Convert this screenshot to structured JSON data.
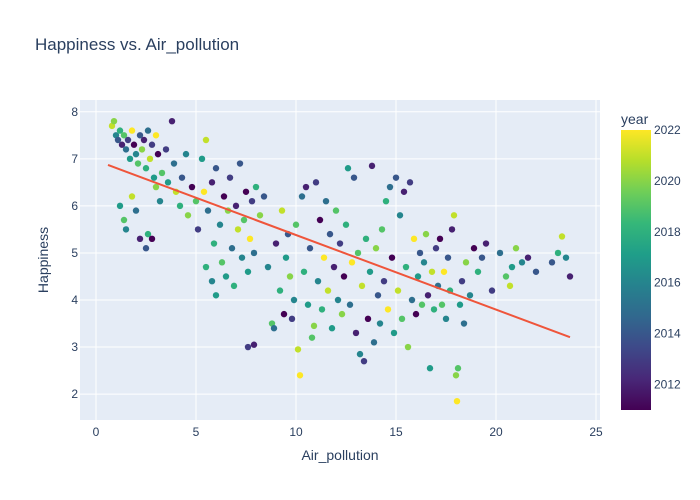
{
  "chart_data": {
    "type": "scatter",
    "title": "Happiness vs. Air_pollution",
    "xlabel": "Air_pollution",
    "ylabel": "Happiness",
    "xlim": [
      -0.8,
      25.2
    ],
    "ylim": [
      1.45,
      8.25
    ],
    "xticks": [
      0,
      5,
      10,
      15,
      20,
      25
    ],
    "yticks": [
      2,
      3,
      4,
      5,
      6,
      7,
      8
    ],
    "grid": true,
    "colorbar": {
      "title": "year",
      "range": [
        2011,
        2022
      ],
      "ticks": [
        2012,
        2014,
        2016,
        2018,
        2020,
        2022
      ],
      "colors": [
        "#440154",
        "#482878",
        "#3e4989",
        "#31688e",
        "#26828e",
        "#1f9e89",
        "#35b779",
        "#6ece58",
        "#b5de2b",
        "#fde725"
      ]
    },
    "trendline": {
      "color": "#ef553b",
      "x": [
        0.6,
        23.7
      ],
      "y": [
        6.87,
        3.21
      ]
    },
    "points": [
      [
        0.8,
        7.7,
        2021
      ],
      [
        0.9,
        7.8,
        2020
      ],
      [
        1.0,
        7.5,
        2016
      ],
      [
        1.1,
        7.4,
        2014
      ],
      [
        1.2,
        7.6,
        2018
      ],
      [
        1.3,
        7.3,
        2012
      ],
      [
        1.4,
        7.5,
        2019
      ],
      [
        1.5,
        7.2,
        2015
      ],
      [
        1.6,
        7.4,
        2013
      ],
      [
        1.7,
        7.0,
        2017
      ],
      [
        1.8,
        7.6,
        2022
      ],
      [
        1.9,
        7.3,
        2011
      ],
      [
        2.0,
        7.1,
        2016
      ],
      [
        2.1,
        6.9,
        2019
      ],
      [
        2.2,
        7.5,
        2014
      ],
      [
        2.3,
        7.2,
        2020
      ],
      [
        2.4,
        7.4,
        2012
      ],
      [
        2.5,
        6.8,
        2018
      ],
      [
        2.6,
        7.6,
        2015
      ],
      [
        2.7,
        7.0,
        2021
      ],
      [
        2.8,
        7.3,
        2013
      ],
      [
        2.9,
        6.6,
        2017
      ],
      [
        3.0,
        7.5,
        2022
      ],
      [
        3.1,
        7.1,
        2011
      ],
      [
        1.2,
        6.0,
        2017
      ],
      [
        1.4,
        5.7,
        2019
      ],
      [
        1.5,
        5.5,
        2016
      ],
      [
        1.8,
        6.2,
        2021
      ],
      [
        2.0,
        5.9,
        2015
      ],
      [
        2.2,
        5.3,
        2012
      ],
      [
        2.5,
        5.1,
        2014
      ],
      [
        2.6,
        5.4,
        2018
      ],
      [
        2.8,
        5.3,
        2011
      ],
      [
        3.0,
        6.4,
        2020
      ],
      [
        3.2,
        6.1,
        2016
      ],
      [
        3.3,
        6.7,
        2019
      ],
      [
        3.5,
        7.2,
        2013
      ],
      [
        3.6,
        6.5,
        2017
      ],
      [
        3.8,
        7.8,
        2012
      ],
      [
        3.9,
        6.9,
        2015
      ],
      [
        4.0,
        6.3,
        2021
      ],
      [
        4.2,
        6.0,
        2018
      ],
      [
        4.3,
        6.6,
        2014
      ],
      [
        4.5,
        7.1,
        2016
      ],
      [
        4.6,
        5.8,
        2020
      ],
      [
        4.8,
        6.4,
        2011
      ],
      [
        5.0,
        6.1,
        2019
      ],
      [
        5.1,
        5.5,
        2013
      ],
      [
        5.3,
        7.0,
        2017
      ],
      [
        5.4,
        6.3,
        2022
      ],
      [
        5.5,
        7.4,
        2021
      ],
      [
        5.6,
        5.9,
        2015
      ],
      [
        5.8,
        6.5,
        2012
      ],
      [
        5.9,
        5.2,
        2018
      ],
      [
        6.0,
        6.8,
        2014
      ],
      [
        6.2,
        5.6,
        2016
      ],
      [
        6.3,
        4.8,
        2019
      ],
      [
        6.4,
        6.2,
        2011
      ],
      [
        6.5,
        4.5,
        2017
      ],
      [
        6.6,
        5.9,
        2020
      ],
      [
        6.7,
        6.6,
        2013
      ],
      [
        6.8,
        5.1,
        2015
      ],
      [
        6.9,
        4.3,
        2018
      ],
      [
        7.0,
        6.0,
        2012
      ],
      [
        7.1,
        5.5,
        2021
      ],
      [
        7.2,
        6.9,
        2014
      ],
      [
        7.3,
        4.9,
        2016
      ],
      [
        7.4,
        5.7,
        2019
      ],
      [
        7.5,
        6.3,
        2011
      ],
      [
        7.6,
        4.6,
        2017
      ],
      [
        7.7,
        5.3,
        2022
      ],
      [
        7.8,
        6.1,
        2013
      ],
      [
        7.9,
        5.0,
        2015
      ],
      [
        8.0,
        6.4,
        2018
      ],
      [
        6.0,
        4.1,
        2017
      ],
      [
        5.8,
        4.4,
        2016
      ],
      [
        5.5,
        4.7,
        2018
      ],
      [
        7.6,
        3.0,
        2013
      ],
      [
        7.9,
        3.05,
        2012
      ],
      [
        8.2,
        5.8,
        2020
      ],
      [
        8.4,
        6.2,
        2014
      ],
      [
        8.6,
        4.7,
        2016
      ],
      [
        8.8,
        3.5,
        2019
      ],
      [
        8.9,
        3.4,
        2015
      ],
      [
        9.0,
        5.2,
        2012
      ],
      [
        9.2,
        4.2,
        2018
      ],
      [
        9.3,
        5.9,
        2021
      ],
      [
        9.4,
        3.7,
        2011
      ],
      [
        9.5,
        4.9,
        2017
      ],
      [
        9.6,
        5.4,
        2014
      ],
      [
        9.7,
        4.5,
        2020
      ],
      [
        9.8,
        3.6,
        2013
      ],
      [
        9.9,
        4.0,
        2016
      ],
      [
        10.0,
        5.6,
        2019
      ],
      [
        10.1,
        2.95,
        2021
      ],
      [
        10.2,
        2.4,
        2022
      ],
      [
        10.3,
        6.2,
        2015
      ],
      [
        10.4,
        4.6,
        2018
      ],
      [
        10.5,
        6.4,
        2012
      ],
      [
        10.6,
        3.9,
        2017
      ],
      [
        10.7,
        5.1,
        2014
      ],
      [
        10.8,
        3.2,
        2019
      ],
      [
        10.9,
        3.45,
        2020
      ],
      [
        11.0,
        6.5,
        2013
      ],
      [
        11.1,
        4.4,
        2016
      ],
      [
        11.2,
        5.7,
        2011
      ],
      [
        11.3,
        3.8,
        2018
      ],
      [
        11.4,
        4.9,
        2022
      ],
      [
        11.5,
        6.1,
        2015
      ],
      [
        11.6,
        4.2,
        2021
      ],
      [
        11.7,
        5.4,
        2014
      ],
      [
        11.8,
        3.4,
        2017
      ],
      [
        11.9,
        4.7,
        2012
      ],
      [
        12.0,
        5.9,
        2019
      ],
      [
        12.1,
        4.0,
        2016
      ],
      [
        12.2,
        5.2,
        2013
      ],
      [
        12.3,
        3.7,
        2020
      ],
      [
        12.4,
        4.5,
        2011
      ],
      [
        12.5,
        5.6,
        2018
      ],
      [
        12.6,
        6.8,
        2017
      ],
      [
        12.7,
        3.9,
        2015
      ],
      [
        12.8,
        4.8,
        2022
      ],
      [
        12.9,
        6.6,
        2014
      ],
      [
        13.0,
        3.3,
        2012
      ],
      [
        13.1,
        5.0,
        2019
      ],
      [
        13.2,
        2.85,
        2016
      ],
      [
        13.3,
        4.3,
        2021
      ],
      [
        13.4,
        2.7,
        2013
      ],
      [
        13.5,
        5.3,
        2018
      ],
      [
        13.6,
        3.6,
        2011
      ],
      [
        13.7,
        4.6,
        2017
      ],
      [
        13.8,
        6.85,
        2012
      ],
      [
        13.9,
        3.1,
        2015
      ],
      [
        14.0,
        5.1,
        2020
      ],
      [
        14.1,
        4.1,
        2014
      ],
      [
        14.2,
        3.5,
        2016
      ],
      [
        14.3,
        5.5,
        2019
      ],
      [
        14.4,
        4.4,
        2013
      ],
      [
        14.5,
        6.1,
        2018
      ],
      [
        14.6,
        3.8,
        2022
      ],
      [
        14.7,
        6.4,
        2015
      ],
      [
        14.8,
        4.9,
        2011
      ],
      [
        14.9,
        3.3,
        2017
      ],
      [
        15.0,
        6.6,
        2014
      ],
      [
        15.1,
        4.2,
        2021
      ],
      [
        15.2,
        5.8,
        2016
      ],
      [
        15.3,
        3.6,
        2019
      ],
      [
        15.4,
        6.3,
        2012
      ],
      [
        15.5,
        4.7,
        2018
      ],
      [
        15.6,
        3.0,
        2020
      ],
      [
        15.7,
        6.5,
        2013
      ],
      [
        15.8,
        4.0,
        2015
      ],
      [
        15.9,
        5.3,
        2022
      ],
      [
        16.0,
        3.7,
        2011
      ],
      [
        16.1,
        4.5,
        2017
      ],
      [
        16.2,
        5.0,
        2014
      ],
      [
        16.3,
        3.9,
        2019
      ],
      [
        16.4,
        4.8,
        2016
      ],
      [
        16.5,
        5.4,
        2020
      ],
      [
        16.6,
        4.1,
        2012
      ],
      [
        16.7,
        2.55,
        2017
      ],
      [
        16.8,
        4.6,
        2021
      ],
      [
        16.9,
        3.8,
        2018
      ],
      [
        17.0,
        5.1,
        2013
      ],
      [
        17.1,
        4.3,
        2015
      ],
      [
        17.2,
        5.3,
        2011
      ],
      [
        17.3,
        3.9,
        2019
      ],
      [
        17.4,
        4.6,
        2022
      ],
      [
        17.5,
        3.6,
        2016
      ],
      [
        17.6,
        4.9,
        2014
      ],
      [
        17.7,
        4.2,
        2018
      ],
      [
        17.8,
        5.5,
        2012
      ],
      [
        17.9,
        5.8,
        2021
      ],
      [
        18.0,
        2.4,
        2020
      ],
      [
        18.05,
        1.85,
        2022
      ],
      [
        18.1,
        2.55,
        2019
      ],
      [
        18.2,
        3.9,
        2017
      ],
      [
        18.3,
        4.4,
        2013
      ],
      [
        18.4,
        3.5,
        2015
      ],
      [
        18.5,
        4.8,
        2020
      ],
      [
        18.7,
        4.1,
        2016
      ],
      [
        18.9,
        5.1,
        2011
      ],
      [
        19.1,
        4.6,
        2018
      ],
      [
        19.3,
        4.9,
        2014
      ],
      [
        19.5,
        5.2,
        2012
      ],
      [
        19.8,
        4.2,
        2013
      ],
      [
        20.2,
        5.0,
        2015
      ],
      [
        20.5,
        4.5,
        2019
      ],
      [
        20.7,
        4.3,
        2021
      ],
      [
        20.8,
        4.7,
        2017
      ],
      [
        21.0,
        5.1,
        2020
      ],
      [
        21.3,
        4.8,
        2016
      ],
      [
        21.6,
        4.9,
        2012
      ],
      [
        22.0,
        4.6,
        2014
      ],
      [
        22.8,
        4.8,
        2014
      ],
      [
        23.1,
        5.0,
        2018
      ],
      [
        23.3,
        5.35,
        2021
      ],
      [
        23.5,
        4.9,
        2016
      ],
      [
        23.7,
        4.5,
        2012
      ]
    ]
  }
}
